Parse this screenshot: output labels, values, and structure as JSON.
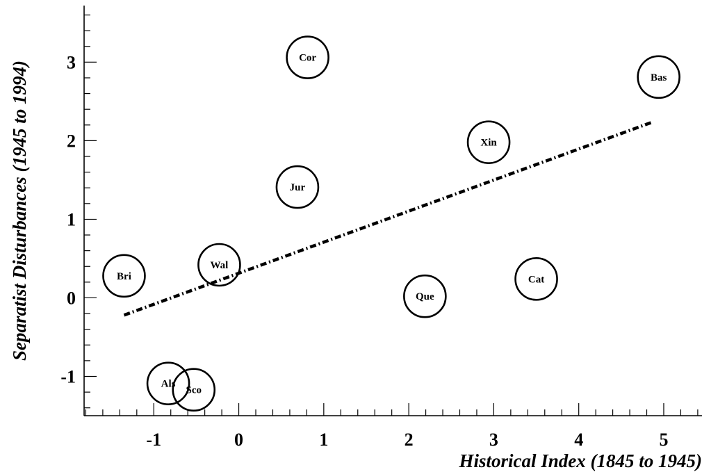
{
  "chart_data": {
    "type": "scatter",
    "xlabel": "Historical Index (1845 to 1945)",
    "ylabel": "Separatist Disturbances (1945 to 1994)",
    "xlim": [
      -1.82,
      5.45
    ],
    "ylim": [
      -1.5,
      3.72
    ],
    "x_major_ticks": [
      -1,
      0,
      1,
      2,
      3,
      4,
      5
    ],
    "y_major_ticks": [
      -1,
      0,
      1,
      2,
      3
    ],
    "grid": false,
    "points": [
      {
        "label": "Bri",
        "x": -1.35,
        "y": 0.28
      },
      {
        "label": "Als",
        "x": -0.83,
        "y": -1.09
      },
      {
        "label": "Sco",
        "x": -0.53,
        "y": -1.17
      },
      {
        "label": "Wal",
        "x": -0.23,
        "y": 0.42
      },
      {
        "label": "Jur",
        "x": 0.69,
        "y": 1.41
      },
      {
        "label": "Cor",
        "x": 0.81,
        "y": 3.06
      },
      {
        "label": "Que",
        "x": 2.19,
        "y": 0.02
      },
      {
        "label": "Xin",
        "x": 2.94,
        "y": 1.98
      },
      {
        "label": "Cat",
        "x": 3.5,
        "y": 0.24
      },
      {
        "label": "Bas",
        "x": 4.94,
        "y": 2.81
      }
    ],
    "fit_line": {
      "x": [
        -1.35,
        4.85
      ],
      "y": [
        -0.22,
        2.23
      ],
      "style": "dash-dot"
    }
  }
}
